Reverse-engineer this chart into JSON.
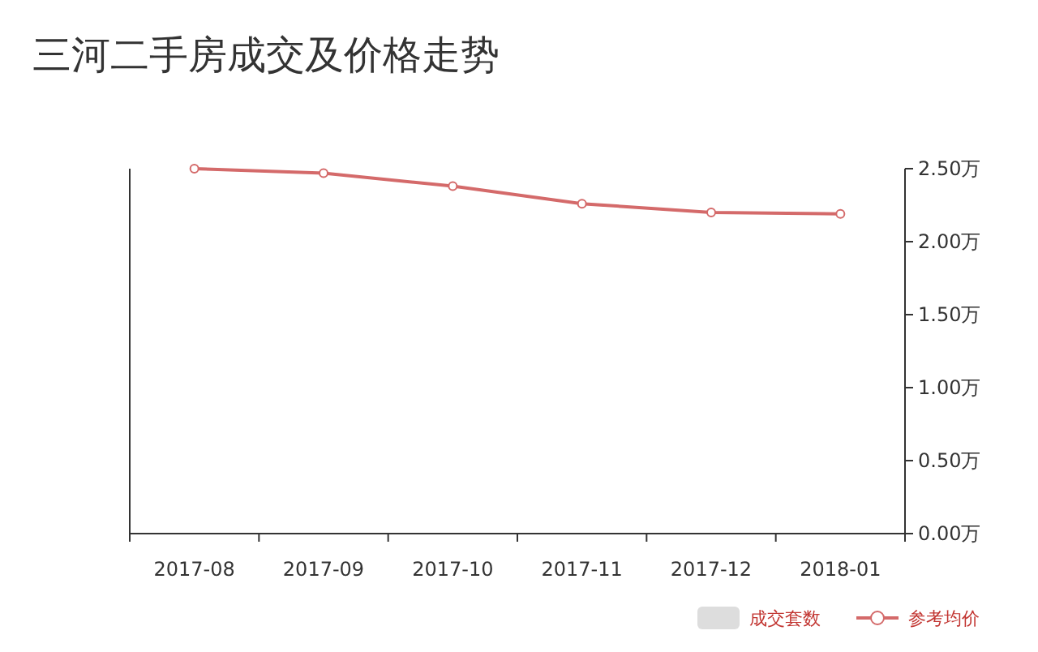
{
  "chart_data": {
    "type": "line",
    "title": "三河二手房成交及价格走势",
    "categories": [
      "2017-08",
      "2017-09",
      "2017-10",
      "2017-11",
      "2017-12",
      "2018-01"
    ],
    "series": [
      {
        "name": "成交套数",
        "type": "bar",
        "color": "#dddddd",
        "values": [
          null,
          null,
          null,
          null,
          null,
          null
        ]
      },
      {
        "name": "参考均价",
        "axis": "y2",
        "color": "#d46a6a",
        "values": [
          2.5,
          2.47,
          2.38,
          2.26,
          2.2,
          2.19
        ]
      }
    ],
    "y2lim": [
      0,
      2.5
    ],
    "y2ticks": [
      {
        "value": 0,
        "label": "0.00万"
      },
      {
        "value": 0.5,
        "label": "0.50万"
      },
      {
        "value": 1,
        "label": "1.00万"
      },
      {
        "value": 1.5,
        "label": "1.50万"
      },
      {
        "value": 2,
        "label": "2.00万"
      },
      {
        "value": 2.5,
        "label": "2.50万"
      }
    ],
    "marker": "circle",
    "grid": false,
    "legend": "bottom right"
  }
}
